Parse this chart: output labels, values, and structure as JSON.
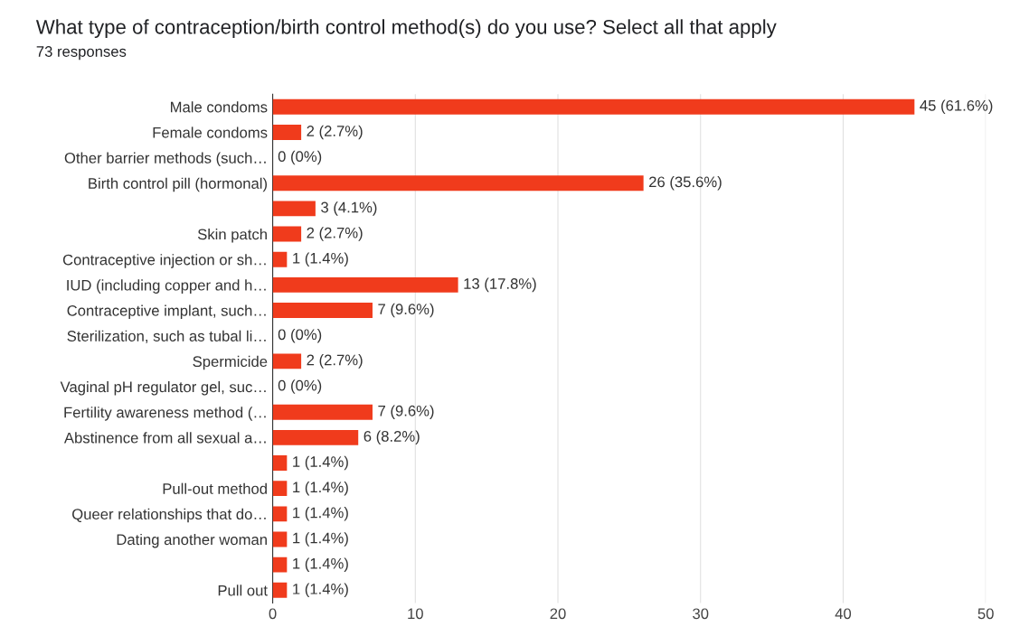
{
  "chart_data": {
    "type": "bar",
    "orientation": "horizontal",
    "title": "What type of contraception/birth control method(s) do you use? Select all that apply",
    "subtitle": "73 responses",
    "categories": [
      "Male condoms",
      "Female condoms",
      "Other barrier methods (such…",
      "Birth control pill (hormonal)",
      null,
      "Skin patch",
      "Contraceptive injection or sh…",
      "IUD (including copper and h…",
      "Contraceptive implant, such…",
      "Sterilization, such as tubal li…",
      "Spermicide",
      "Vaginal pH regulator gel, suc…",
      "Fertility awareness method (…",
      "Abstinence from all sexual a…",
      null,
      "Pull-out method",
      "Queer relationships that do…",
      "Dating another woman",
      null,
      "Pull out"
    ],
    "values": [
      45,
      2,
      0,
      26,
      3,
      2,
      1,
      13,
      7,
      0,
      2,
      0,
      7,
      6,
      1,
      1,
      1,
      1,
      1,
      1
    ],
    "value_labels": [
      "45 (61.6%)",
      "2 (2.7%)",
      "0 (0%)",
      "26 (35.6%)",
      "3 (4.1%)",
      "2 (2.7%)",
      "1 (1.4%)",
      "13 (17.8%)",
      "7 (9.6%)",
      "0 (0%)",
      "2 (2.7%)",
      "0 (0%)",
      "7 (9.6%)",
      "6 (8.2%)",
      "1 (1.4%)",
      "1 (1.4%)",
      "1 (1.4%)",
      "1 (1.4%)",
      "1 (1.4%)",
      "1 (1.4%)"
    ],
    "color": "#f03b1c",
    "xlim": [
      0,
      50
    ],
    "xticks": [
      0,
      10,
      20,
      30,
      40,
      50
    ],
    "grid": "x",
    "legend": false
  }
}
